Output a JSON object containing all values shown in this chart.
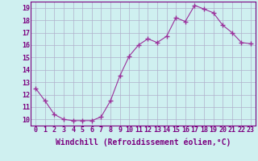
{
  "x": [
    0,
    1,
    2,
    3,
    4,
    5,
    6,
    7,
    8,
    9,
    10,
    11,
    12,
    13,
    14,
    15,
    16,
    17,
    18,
    19,
    20,
    21,
    22,
    23
  ],
  "y": [
    12.5,
    11.5,
    10.4,
    10.0,
    9.9,
    9.9,
    9.9,
    10.2,
    11.5,
    13.5,
    15.1,
    16.0,
    16.5,
    16.2,
    16.7,
    18.2,
    17.9,
    19.2,
    18.9,
    18.6,
    17.6,
    17.0,
    16.2,
    16.1
  ],
  "line_color": "#9b309b",
  "marker": "+",
  "markersize": 4,
  "linewidth": 0.8,
  "xlim": [
    -0.5,
    23.5
  ],
  "ylim": [
    9.5,
    19.5
  ],
  "yticks": [
    10,
    11,
    12,
    13,
    14,
    15,
    16,
    17,
    18,
    19
  ],
  "xticks": [
    0,
    1,
    2,
    3,
    4,
    5,
    6,
    7,
    8,
    9,
    10,
    11,
    12,
    13,
    14,
    15,
    16,
    17,
    18,
    19,
    20,
    21,
    22,
    23
  ],
  "xlabel": "Windchill (Refroidissement éolien,°C)",
  "bg_color": "#cff0f0",
  "grid_color": "#b0b0cc",
  "label_color": "#7b0080",
  "tick_color": "#7b0080",
  "xlabel_fontsize": 7,
  "tick_fontsize": 6,
  "spine_color": "#7b0080"
}
